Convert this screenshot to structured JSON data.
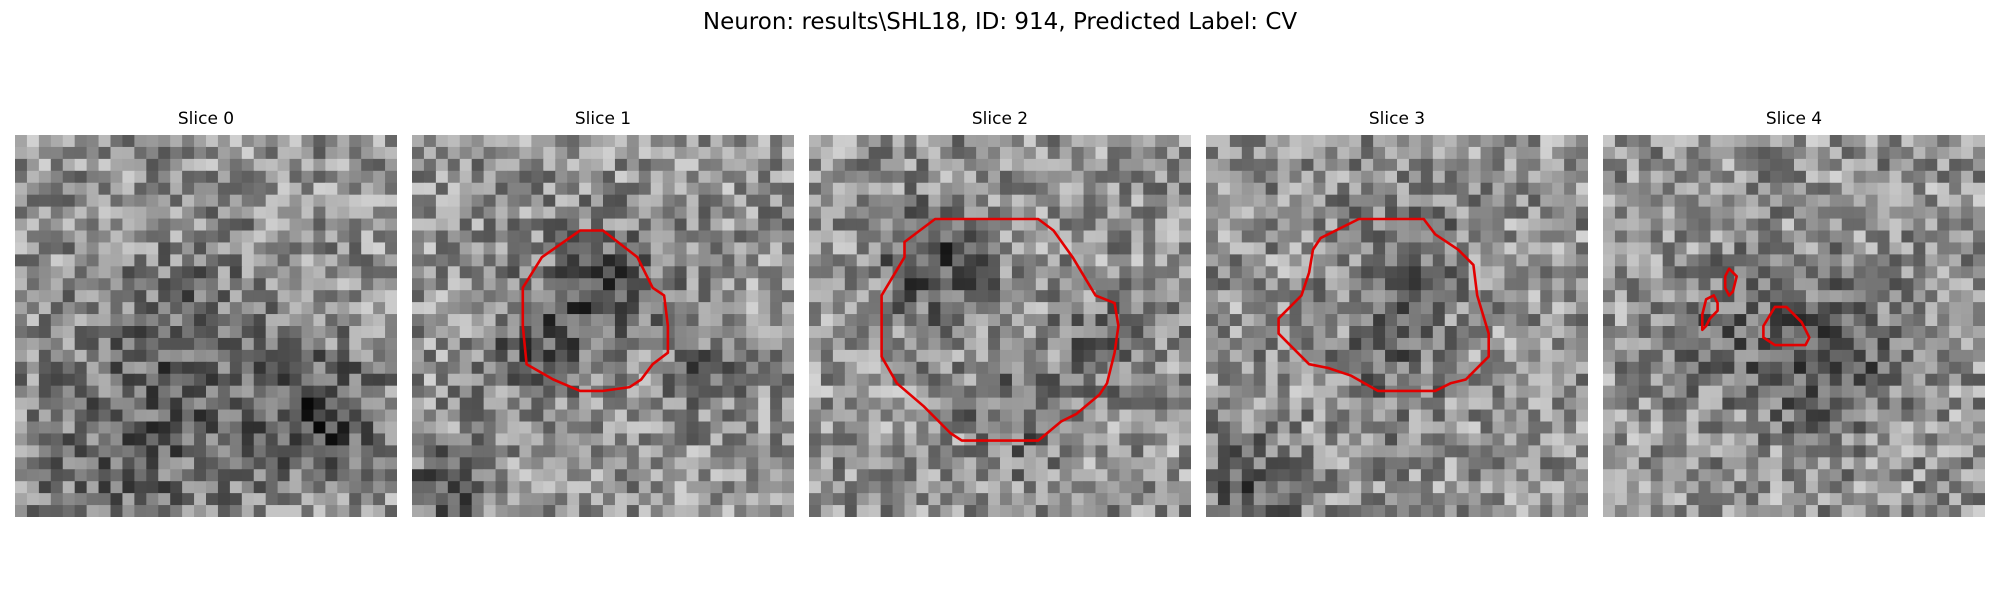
{
  "figure": {
    "title": "Neuron: results\\SHL18, ID: 914, Predicted Label: CV",
    "contour_color": "#e30000"
  },
  "panels": [
    {
      "title": "Slice 0",
      "contours": [],
      "dark_regions": [
        {
          "center": [
            0.45,
            0.55
          ],
          "radius": 0.17,
          "strength": 0.18
        },
        {
          "center": [
            0.8,
            0.74
          ],
          "radius": 0.11,
          "strength": 0.32
        },
        {
          "center": [
            0.3,
            0.9
          ],
          "radius": 0.2,
          "strength": 0.16
        }
      ]
    },
    {
      "title": "Slice 1",
      "contours": [
        [
          [
            0.44,
            0.25
          ],
          [
            0.5,
            0.25
          ],
          [
            0.59,
            0.32
          ],
          [
            0.63,
            0.4
          ],
          [
            0.66,
            0.42
          ],
          [
            0.67,
            0.5
          ],
          [
            0.67,
            0.57
          ],
          [
            0.63,
            0.6
          ],
          [
            0.6,
            0.64
          ],
          [
            0.57,
            0.66
          ],
          [
            0.5,
            0.67
          ],
          [
            0.44,
            0.67
          ],
          [
            0.37,
            0.64
          ],
          [
            0.3,
            0.6
          ],
          [
            0.29,
            0.5
          ],
          [
            0.29,
            0.4
          ],
          [
            0.34,
            0.32
          ]
        ]
      ],
      "dark_regions": [
        {
          "center": [
            0.51,
            0.39
          ],
          "radius": 0.11,
          "strength": 0.25
        },
        {
          "center": [
            0.33,
            0.55
          ],
          "radius": 0.1,
          "strength": 0.22
        },
        {
          "center": [
            0.1,
            0.92
          ],
          "radius": 0.08,
          "strength": 0.25
        },
        {
          "center": [
            0.78,
            0.62
          ],
          "radius": 0.08,
          "strength": 0.18
        }
      ]
    },
    {
      "title": "Slice 2",
      "contours": [
        [
          [
            0.33,
            0.22
          ],
          [
            0.4,
            0.22
          ],
          [
            0.6,
            0.22
          ],
          [
            0.64,
            0.25
          ],
          [
            0.69,
            0.32
          ],
          [
            0.75,
            0.42
          ],
          [
            0.8,
            0.44
          ],
          [
            0.81,
            0.5
          ],
          [
            0.8,
            0.57
          ],
          [
            0.78,
            0.65
          ],
          [
            0.76,
            0.68
          ],
          [
            0.7,
            0.73
          ],
          [
            0.66,
            0.75
          ],
          [
            0.6,
            0.8
          ],
          [
            0.4,
            0.8
          ],
          [
            0.37,
            0.78
          ],
          [
            0.3,
            0.71
          ],
          [
            0.23,
            0.65
          ],
          [
            0.19,
            0.58
          ],
          [
            0.19,
            0.42
          ],
          [
            0.25,
            0.32
          ],
          [
            0.25,
            0.28
          ]
        ]
      ],
      "dark_regions": [
        {
          "center": [
            0.33,
            0.34
          ],
          "radius": 0.1,
          "strength": 0.28
        },
        {
          "center": [
            0.55,
            0.73
          ],
          "radius": 0.09,
          "strength": 0.2
        },
        {
          "center": [
            0.78,
            0.55
          ],
          "radius": 0.08,
          "strength": 0.18
        }
      ]
    },
    {
      "title": "Slice 3",
      "contours": [
        [
          [
            0.3,
            0.27
          ],
          [
            0.4,
            0.22
          ],
          [
            0.57,
            0.22
          ],
          [
            0.6,
            0.26
          ],
          [
            0.66,
            0.3
          ],
          [
            0.7,
            0.34
          ],
          [
            0.71,
            0.42
          ],
          [
            0.74,
            0.52
          ],
          [
            0.74,
            0.58
          ],
          [
            0.72,
            0.6
          ],
          [
            0.68,
            0.64
          ],
          [
            0.64,
            0.65
          ],
          [
            0.6,
            0.67
          ],
          [
            0.52,
            0.67
          ],
          [
            0.45,
            0.67
          ],
          [
            0.38,
            0.63
          ],
          [
            0.32,
            0.61
          ],
          [
            0.27,
            0.6
          ],
          [
            0.22,
            0.55
          ],
          [
            0.19,
            0.52
          ],
          [
            0.19,
            0.48
          ],
          [
            0.25,
            0.42
          ],
          [
            0.27,
            0.36
          ],
          [
            0.28,
            0.3
          ]
        ]
      ],
      "dark_regions": [
        {
          "center": [
            0.53,
            0.33
          ],
          "radius": 0.1,
          "strength": 0.2
        },
        {
          "center": [
            0.48,
            0.62
          ],
          "radius": 0.1,
          "strength": 0.16
        },
        {
          "center": [
            0.12,
            0.92
          ],
          "radius": 0.1,
          "strength": 0.22
        }
      ]
    },
    {
      "title": "Slice 4",
      "contours": [
        [
          [
            0.33,
            0.35
          ],
          [
            0.35,
            0.37
          ],
          [
            0.34,
            0.41
          ],
          [
            0.33,
            0.42
          ],
          [
            0.32,
            0.4
          ],
          [
            0.32,
            0.37
          ]
        ],
        [
          [
            0.27,
            0.43
          ],
          [
            0.29,
            0.42
          ],
          [
            0.3,
            0.44
          ],
          [
            0.3,
            0.46
          ],
          [
            0.28,
            0.48
          ],
          [
            0.27,
            0.5
          ],
          [
            0.26,
            0.51
          ],
          [
            0.26,
            0.49
          ],
          [
            0.26,
            0.47
          ]
        ],
        [
          [
            0.45,
            0.45
          ],
          [
            0.48,
            0.45
          ],
          [
            0.52,
            0.49
          ],
          [
            0.53,
            0.51
          ],
          [
            0.54,
            0.53
          ],
          [
            0.53,
            0.55
          ],
          [
            0.45,
            0.55
          ],
          [
            0.42,
            0.53
          ],
          [
            0.42,
            0.5
          ]
        ]
      ],
      "dark_regions": [
        {
          "center": [
            0.58,
            0.57
          ],
          "radius": 0.13,
          "strength": 0.28
        },
        {
          "center": [
            0.3,
            0.5
          ],
          "radius": 0.12,
          "strength": 0.12
        }
      ]
    }
  ]
}
